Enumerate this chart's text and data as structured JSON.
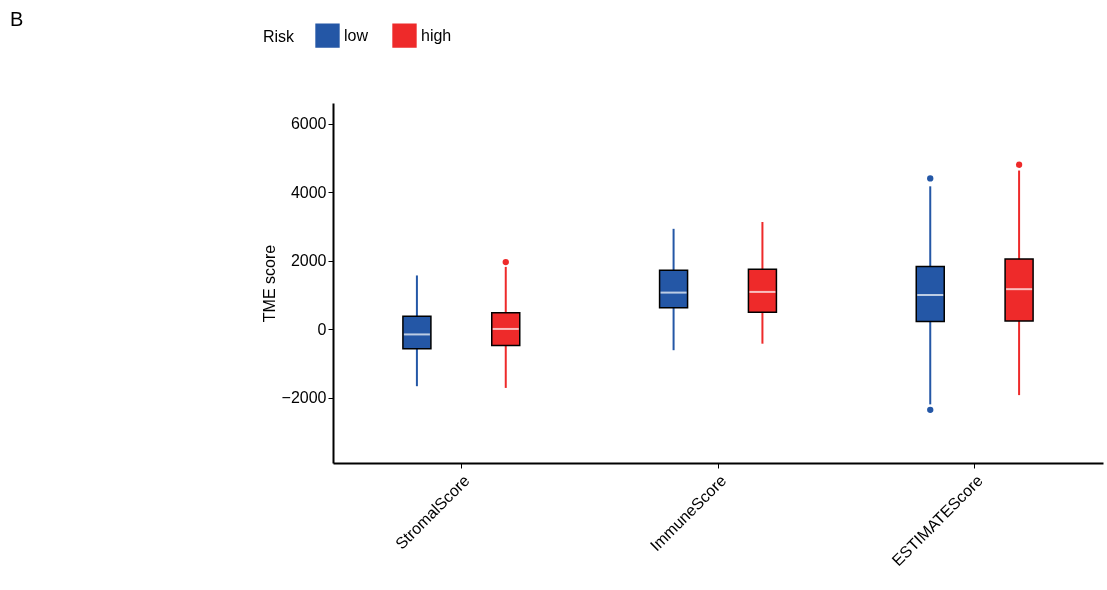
{
  "chart_data": {
    "type": "box",
    "ylabel": "TME score",
    "legend_title": "Risk",
    "legend": "top",
    "annotations": [
      "B"
    ],
    "categories": [
      "StromalScore",
      "ImmuneScore",
      "ESTIMATEScore"
    ],
    "ylim": [
      -3900,
      6600
    ],
    "yticks": [
      -2000,
      0,
      2000,
      4000,
      6000
    ],
    "series": [
      {
        "name": "low",
        "color": "#2457a6",
        "boxes": [
          {
            "low": -1660,
            "q1": -570,
            "median": -150,
            "q3": 380,
            "high": 1570
          },
          {
            "low": -610,
            "q1": 630,
            "median": 1070,
            "q3": 1720,
            "high": 2930
          },
          {
            "low": -2190,
            "q1": 230,
            "median": 1000,
            "q3": 1830,
            "high": 4170,
            "outliers": [
              4400,
              -2350
            ]
          }
        ]
      },
      {
        "name": "high",
        "color": "#ee2a2a",
        "boxes": [
          {
            "low": -1710,
            "q1": -470,
            "median": 10,
            "q3": 480,
            "high": 1820,
            "outliers": [
              1960
            ]
          },
          {
            "low": -420,
            "q1": 500,
            "median": 1090,
            "q3": 1750,
            "high": 3130
          },
          {
            "low": -1920,
            "q1": 240,
            "median": 1170,
            "q3": 2050,
            "high": 4630,
            "outliers": [
              4800
            ]
          }
        ]
      }
    ]
  }
}
